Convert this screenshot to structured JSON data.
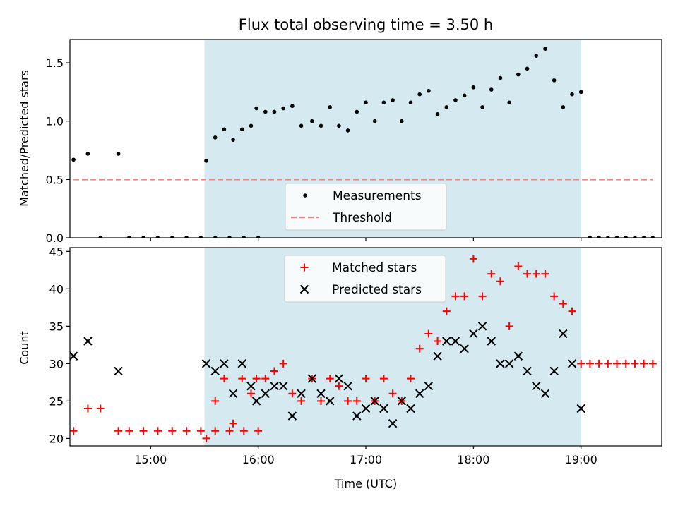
{
  "figure": {
    "title": "Flux total observing time = 3.50 h"
  },
  "chart_data": [
    {
      "type": "scatter",
      "panel": "top",
      "ylabel": "Matched/Predicted stars",
      "xlim": [
        "14:15",
        "19:45"
      ],
      "ylim": [
        0,
        1.7
      ],
      "yticks": [
        "0.0",
        "0.5",
        "1.0",
        "1.5"
      ],
      "shaded_interval": [
        "15:30",
        "19:00"
      ],
      "shade_color": "#d4eaf0",
      "legend_position": "lower-center",
      "series": [
        {
          "name": "Measurements",
          "marker": "dot",
          "color": "#000000",
          "points": [
            [
              "14:17",
              0.67
            ],
            [
              "14:25",
              0.72
            ],
            [
              "14:32",
              0.0
            ],
            [
              "14:42",
              0.72
            ],
            [
              "14:48",
              0.0
            ],
            [
              "14:56",
              0.0
            ],
            [
              "15:04",
              0.0
            ],
            [
              "15:12",
              0.0
            ],
            [
              "15:20",
              0.0
            ],
            [
              "15:28",
              0.0
            ],
            [
              "15:36",
              0.0
            ],
            [
              "15:44",
              0.0
            ],
            [
              "15:52",
              0.0
            ],
            [
              "16:00",
              0.0
            ],
            [
              "15:31",
              0.66
            ],
            [
              "15:36",
              0.86
            ],
            [
              "15:41",
              0.93
            ],
            [
              "15:46",
              0.84
            ],
            [
              "15:51",
              0.93
            ],
            [
              "15:56",
              0.96
            ],
            [
              "15:59",
              1.11
            ],
            [
              "16:04",
              1.08
            ],
            [
              "16:09",
              1.08
            ],
            [
              "16:14",
              1.11
            ],
            [
              "16:19",
              1.13
            ],
            [
              "16:24",
              0.96
            ],
            [
              "16:30",
              1.0
            ],
            [
              "16:35",
              0.96
            ],
            [
              "16:40",
              1.12
            ],
            [
              "16:45",
              0.96
            ],
            [
              "16:50",
              0.92
            ],
            [
              "16:55",
              1.08
            ],
            [
              "17:00",
              1.16
            ],
            [
              "17:05",
              1.0
            ],
            [
              "17:10",
              1.16
            ],
            [
              "17:15",
              1.18
            ],
            [
              "17:20",
              1.0
            ],
            [
              "17:25",
              1.16
            ],
            [
              "17:30",
              1.23
            ],
            [
              "17:35",
              1.26
            ],
            [
              "17:40",
              1.06
            ],
            [
              "17:45",
              1.12
            ],
            [
              "17:50",
              1.18
            ],
            [
              "17:55",
              1.22
            ],
            [
              "18:00",
              1.29
            ],
            [
              "18:05",
              1.12
            ],
            [
              "18:10",
              1.27
            ],
            [
              "18:15",
              1.37
            ],
            [
              "18:20",
              1.16
            ],
            [
              "18:25",
              1.4
            ],
            [
              "18:30",
              1.45
            ],
            [
              "18:35",
              1.56
            ],
            [
              "18:40",
              1.62
            ],
            [
              "18:45",
              1.35
            ],
            [
              "18:50",
              1.12
            ],
            [
              "18:55",
              1.23
            ],
            [
              "19:00",
              1.25
            ],
            [
              "19:05",
              0.0
            ],
            [
              "19:10",
              0.0
            ],
            [
              "19:15",
              0.0
            ],
            [
              "19:20",
              0.0
            ],
            [
              "19:25",
              0.0
            ],
            [
              "19:30",
              0.0
            ],
            [
              "19:35",
              0.0
            ],
            [
              "19:40",
              0.0
            ]
          ]
        },
        {
          "name": "Threshold",
          "marker": "dashed-line",
          "color": "#ff7f7f",
          "points": [
            [
              "14:17",
              0.5
            ],
            [
              "19:40",
              0.5
            ]
          ]
        }
      ]
    },
    {
      "type": "scatter",
      "panel": "bottom",
      "xlabel": "Time (UTC)",
      "ylabel": "Count",
      "xlim": [
        "14:15",
        "19:45"
      ],
      "ylim": [
        19,
        45.5
      ],
      "xticks": [
        "15:00",
        "16:00",
        "17:00",
        "18:00",
        "19:00"
      ],
      "yticks": [
        "20",
        "25",
        "30",
        "35",
        "40",
        "45"
      ],
      "shaded_interval": [
        "15:30",
        "19:00"
      ],
      "shade_color": "#d4eaf0",
      "legend_position": "upper-center",
      "series": [
        {
          "name": "Matched stars",
          "marker": "plus",
          "color": "#ff0000",
          "points": [
            [
              "14:17",
              21
            ],
            [
              "14:25",
              24
            ],
            [
              "14:32",
              24
            ],
            [
              "14:42",
              21
            ],
            [
              "14:48",
              21
            ],
            [
              "14:56",
              21
            ],
            [
              "15:04",
              21
            ],
            [
              "15:12",
              21
            ],
            [
              "15:20",
              21
            ],
            [
              "15:28",
              21
            ],
            [
              "15:36",
              21
            ],
            [
              "15:44",
              21
            ],
            [
              "15:52",
              21
            ],
            [
              "16:00",
              21
            ],
            [
              "15:31",
              20
            ],
            [
              "15:36",
              25
            ],
            [
              "15:41",
              28
            ],
            [
              "15:46",
              22
            ],
            [
              "15:51",
              28
            ],
            [
              "15:56",
              26
            ],
            [
              "15:59",
              28
            ],
            [
              "16:04",
              28
            ],
            [
              "16:09",
              29
            ],
            [
              "16:14",
              30
            ],
            [
              "16:19",
              26
            ],
            [
              "16:24",
              25
            ],
            [
              "16:30",
              28
            ],
            [
              "16:35",
              25
            ],
            [
              "16:40",
              28
            ],
            [
              "16:45",
              27
            ],
            [
              "16:50",
              25
            ],
            [
              "16:55",
              25
            ],
            [
              "17:00",
              28
            ],
            [
              "17:05",
              25
            ],
            [
              "17:10",
              28
            ],
            [
              "17:15",
              26
            ],
            [
              "17:20",
              25
            ],
            [
              "17:25",
              28
            ],
            [
              "17:30",
              32
            ],
            [
              "17:35",
              34
            ],
            [
              "17:40",
              33
            ],
            [
              "17:45",
              37
            ],
            [
              "17:50",
              39
            ],
            [
              "17:55",
              39
            ],
            [
              "18:00",
              44
            ],
            [
              "18:05",
              39
            ],
            [
              "18:10",
              42
            ],
            [
              "18:15",
              41
            ],
            [
              "18:20",
              35
            ],
            [
              "18:25",
              43
            ],
            [
              "18:30",
              42
            ],
            [
              "18:35",
              42
            ],
            [
              "18:40",
              42
            ],
            [
              "18:45",
              39
            ],
            [
              "18:50",
              38
            ],
            [
              "18:55",
              37
            ],
            [
              "19:00",
              30
            ],
            [
              "19:05",
              30
            ],
            [
              "19:10",
              30
            ],
            [
              "19:15",
              30
            ],
            [
              "19:20",
              30
            ],
            [
              "19:25",
              30
            ],
            [
              "19:30",
              30
            ],
            [
              "19:35",
              30
            ],
            [
              "19:40",
              30
            ]
          ]
        },
        {
          "name": "Predicted stars",
          "marker": "x",
          "color": "#000000",
          "points": [
            [
              "14:17",
              31
            ],
            [
              "14:25",
              33
            ],
            [
              "14:42",
              29
            ],
            [
              "15:31",
              30
            ],
            [
              "15:36",
              29
            ],
            [
              "15:41",
              30
            ],
            [
              "15:46",
              26
            ],
            [
              "15:51",
              30
            ],
            [
              "15:56",
              27
            ],
            [
              "15:59",
              25
            ],
            [
              "16:04",
              26
            ],
            [
              "16:09",
              27
            ],
            [
              "16:14",
              27
            ],
            [
              "16:19",
              23
            ],
            [
              "16:24",
              26
            ],
            [
              "16:30",
              28
            ],
            [
              "16:35",
              26
            ],
            [
              "16:40",
              25
            ],
            [
              "16:45",
              28
            ],
            [
              "16:50",
              27
            ],
            [
              "16:55",
              23
            ],
            [
              "17:00",
              24
            ],
            [
              "17:05",
              25
            ],
            [
              "17:10",
              24
            ],
            [
              "17:15",
              22
            ],
            [
              "17:20",
              25
            ],
            [
              "17:25",
              24
            ],
            [
              "17:30",
              26
            ],
            [
              "17:35",
              27
            ],
            [
              "17:40",
              31
            ],
            [
              "17:45",
              33
            ],
            [
              "17:50",
              33
            ],
            [
              "17:55",
              32
            ],
            [
              "18:00",
              34
            ],
            [
              "18:05",
              35
            ],
            [
              "18:10",
              33
            ],
            [
              "18:15",
              30
            ],
            [
              "18:20",
              30
            ],
            [
              "18:25",
              31
            ],
            [
              "18:30",
              29
            ],
            [
              "18:35",
              27
            ],
            [
              "18:40",
              26
            ],
            [
              "18:45",
              29
            ],
            [
              "18:50",
              34
            ],
            [
              "18:55",
              30
            ],
            [
              "19:00",
              24
            ]
          ]
        }
      ]
    }
  ]
}
